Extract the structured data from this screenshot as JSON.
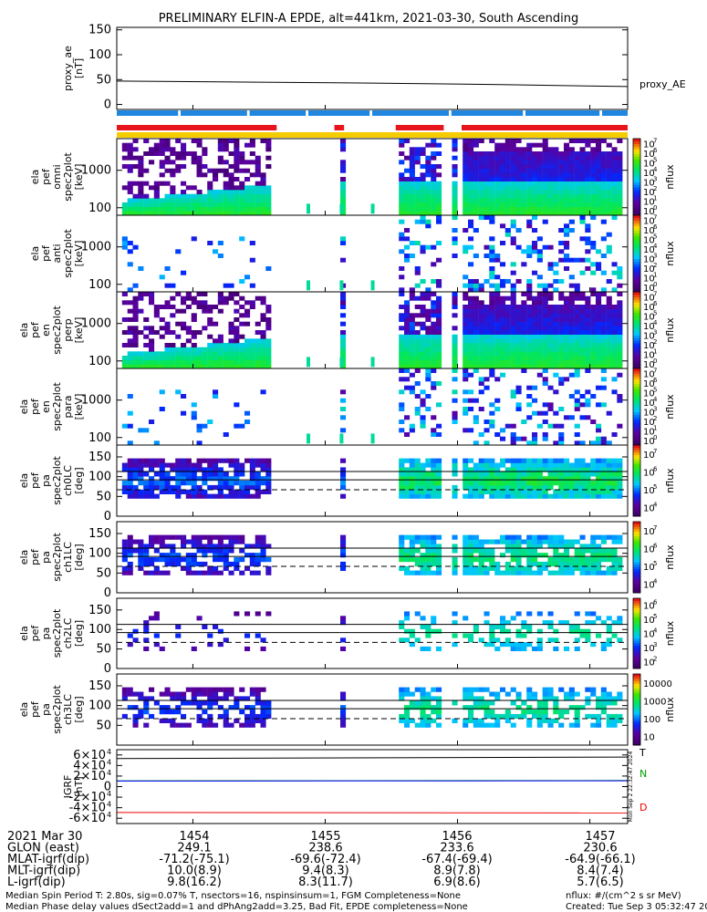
{
  "title": "PRELIMINARY ELFIN-A EPDE, alt=441km, 2021-03-30, South Ascending",
  "colors": {
    "bar_red": "#e8141c",
    "bar_yellow": "#f5cc00",
    "bar_blue": "#1f87e0",
    "igrf_T": "#000000",
    "igrf_N": "#00a000",
    "igrf_N2": "#0000ff",
    "igrf_D": "#ee0000"
  },
  "chart_data": [
    {
      "id": "proxy_ae",
      "type": "line",
      "ylabel": [
        "proxy_ae",
        "[nT]"
      ],
      "yticks": [
        "0",
        "50",
        "100",
        "150"
      ],
      "ylim": [
        -10,
        155
      ],
      "series": [
        {
          "name": "proxy_AE",
          "x": [
            0,
            0.25,
            0.5,
            0.75,
            1.0
          ],
          "y": [
            47,
            45,
            43,
            40,
            36
          ]
        }
      ],
      "legend": "proxy_AE"
    },
    {
      "id": "status_bars",
      "type": "bar",
      "rows": [
        {
          "name": "blue",
          "segments": [
            [
              0.0,
              0.12
            ],
            [
              0.125,
              0.255
            ],
            [
              0.26,
              0.37
            ],
            [
              0.375,
              0.495
            ],
            [
              0.5,
              0.65
            ],
            [
              0.655,
              0.795
            ],
            [
              0.8,
              0.945
            ],
            [
              0.95,
              1.0
            ]
          ]
        },
        {
          "name": "red",
          "segments": [
            [
              0.0,
              0.313
            ],
            [
              0.426,
              0.445
            ],
            [
              0.546,
              0.64
            ],
            [
              0.675,
              1.0
            ]
          ]
        },
        {
          "name": "yellow",
          "segments": [
            [
              0.0,
              1.0
            ]
          ]
        }
      ]
    },
    {
      "id": "spec-omni",
      "type": "heatmap",
      "ylabel": [
        "ela",
        "pef",
        "omni",
        "spec2plot",
        "[keV]"
      ],
      "yscale": "log",
      "yticks": [
        "100",
        "1000"
      ],
      "ytick_values": [
        100,
        1000
      ],
      "ylim": [
        63,
        7000
      ],
      "cb_ticks": [
        "10",
        "10",
        "10",
        "10",
        "10",
        "10",
        "10",
        "10"
      ],
      "cb_exps": [
        "0",
        "1",
        "2",
        "3",
        "4",
        "5",
        "6",
        "7"
      ],
      "cb_label": "nflux",
      "profile": "spec_dense"
    },
    {
      "id": "spec-anti",
      "type": "heatmap",
      "ylabel": [
        "ela",
        "pef",
        "anti",
        "spec2plot",
        "[keV]"
      ],
      "yscale": "log",
      "yticks": [
        "100",
        "1000"
      ],
      "ytick_values": [
        100,
        1000
      ],
      "ylim": [
        63,
        7000
      ],
      "cb_ticks": [
        "10",
        "10",
        "10",
        "10",
        "10",
        "10",
        "10",
        "10"
      ],
      "cb_exps": [
        "0",
        "1",
        "2",
        "3",
        "4",
        "5",
        "6",
        "7"
      ],
      "cb_label": "nflux",
      "profile": "spec_sparse"
    },
    {
      "id": "spec-perp",
      "type": "heatmap",
      "ylabel": [
        "ela",
        "pef",
        "en",
        "spec2plot",
        "perp",
        "[keV]"
      ],
      "yscale": "log",
      "yticks": [
        "100",
        "1000"
      ],
      "ytick_values": [
        100,
        1000
      ],
      "ylim": [
        63,
        7000
      ],
      "cb_ticks": [
        "10",
        "10",
        "10",
        "10",
        "10",
        "10",
        "10",
        "10"
      ],
      "cb_exps": [
        "0",
        "1",
        "2",
        "3",
        "4",
        "5",
        "6",
        "7"
      ],
      "cb_label": "nflux",
      "profile": "spec_dense"
    },
    {
      "id": "spec-para",
      "type": "heatmap",
      "ylabel": [
        "ela",
        "pef",
        "en",
        "spec2plot",
        "para",
        "[keV]"
      ],
      "yscale": "log",
      "yticks": [
        "100",
        "1000"
      ],
      "ytick_values": [
        100,
        1000
      ],
      "ylim": [
        63,
        7000
      ],
      "cb_ticks": [
        "10",
        "10",
        "10",
        "10",
        "10",
        "10",
        "10",
        "10"
      ],
      "cb_exps": [
        "0",
        "1",
        "2",
        "3",
        "4",
        "5",
        "6",
        "7"
      ],
      "cb_label": "nflux",
      "profile": "spec_sparse"
    },
    {
      "id": "pa-ch0",
      "type": "heatmap",
      "ylabel": [
        "ela",
        "pef",
        "pa",
        "spec2plot",
        "ch0LC",
        "[deg]"
      ],
      "yticks": [
        "0",
        "50",
        "100",
        "150"
      ],
      "ytick_values": [
        0,
        50,
        100,
        150
      ],
      "ylim": [
        0,
        180
      ],
      "reflines": [
        {
          "value": 113,
          "style": "solid"
        },
        {
          "value": 92,
          "style": "solid"
        },
        {
          "value": 67,
          "style": "dashed"
        }
      ],
      "cb_ticks": [
        "10",
        "10",
        "10",
        "10"
      ],
      "cb_exps": [
        "4",
        "5",
        "6",
        "7"
      ],
      "cb_label": "nflux",
      "profile": "pa_dense"
    },
    {
      "id": "pa-ch1",
      "type": "heatmap",
      "ylabel": [
        "ela",
        "pef",
        "pa",
        "spec2plot",
        "ch1LC",
        "[deg]"
      ],
      "yticks": [
        "0",
        "50",
        "100",
        "150"
      ],
      "ytick_values": [
        0,
        50,
        100,
        150
      ],
      "ylim": [
        0,
        180
      ],
      "reflines": [
        {
          "value": 113,
          "style": "solid"
        },
        {
          "value": 92,
          "style": "solid"
        },
        {
          "value": 67,
          "style": "dashed"
        }
      ],
      "cb_ticks": [
        "10",
        "10",
        "10",
        "10"
      ],
      "cb_exps": [
        "4",
        "5",
        "6",
        "7"
      ],
      "cb_label": "nflux",
      "profile": "pa_mid"
    },
    {
      "id": "pa-ch2",
      "type": "heatmap",
      "ylabel": [
        "ela",
        "pef",
        "pa",
        "spec2plot",
        "ch2LC",
        "[deg]"
      ],
      "yticks": [
        "0",
        "50",
        "100",
        "150"
      ],
      "ytick_values": [
        0,
        50,
        100,
        150
      ],
      "ylim": [
        0,
        180
      ],
      "reflines": [
        {
          "value": 113,
          "style": "solid"
        },
        {
          "value": 92,
          "style": "solid"
        },
        {
          "value": 67,
          "style": "dashed"
        }
      ],
      "cb_ticks": [
        "10",
        "10",
        "10",
        "10",
        "10"
      ],
      "cb_exps": [
        "2",
        "3",
        "4",
        "5",
        "6"
      ],
      "cb_label": "nflux",
      "profile": "pa_sparse"
    },
    {
      "id": "pa-ch3",
      "type": "heatmap",
      "ylabel": [
        "ela",
        "pef",
        "pa",
        "spec2plot",
        "ch3LC",
        "[deg]"
      ],
      "yticks": [
        "50",
        "100",
        "150"
      ],
      "ytick_values": [
        50,
        100,
        150
      ],
      "ylim": [
        0,
        180
      ],
      "reflines": [
        {
          "value": 113,
          "style": "solid"
        },
        {
          "value": 92,
          "style": "solid"
        },
        {
          "value": 67,
          "style": "dashed"
        }
      ],
      "cb_ticks": [
        "10",
        "100",
        "1000",
        "10000"
      ],
      "cb_exps": [
        "",
        "",
        "",
        ""
      ],
      "cb_label": "nflux",
      "profile": "pa_ch3"
    },
    {
      "id": "igrf",
      "type": "line",
      "ylabel": [
        "IGRF",
        "[nT]"
      ],
      "yticks": [
        "-6×10",
        "-4×10",
        "-2×10",
        "0",
        "2×10",
        "4×10",
        "6×10"
      ],
      "ytick_exps": [
        "4",
        "4",
        "4",
        "",
        "4",
        "4",
        "4"
      ],
      "ytick_values": [
        -60000,
        -40000,
        -20000,
        0,
        20000,
        40000,
        60000
      ],
      "ylim": [
        -70000,
        70000
      ],
      "series": [
        {
          "name": "T",
          "color": "#000000",
          "x": [
            0,
            1
          ],
          "y": [
            53000,
            56000
          ]
        },
        {
          "name": "N",
          "color": "#00a000",
          "x": [
            0,
            1
          ],
          "y": [
            11000,
            11500
          ]
        },
        {
          "name": "",
          "color": "#0000ff",
          "x": [
            0,
            1
          ],
          "y": [
            10500,
            11000
          ]
        },
        {
          "name": "D",
          "color": "#ee0000",
          "x": [
            0,
            1
          ],
          "y": [
            -49000,
            -50000
          ]
        }
      ],
      "legend": [
        "T",
        "N",
        "D"
      ],
      "side_stamp": "Mon Sep  2 22:32:47 2024"
    }
  ],
  "time_axis": {
    "rows": [
      {
        "label": "2021 Mar 30",
        "values": [
          "1454",
          "1455",
          "1456",
          "1457"
        ]
      },
      {
        "label": "GLON (east)",
        "values": [
          "249.1",
          "238.6",
          "233.6",
          "230.6"
        ]
      },
      {
        "label": "MLAT-igrf(dip)",
        "values": [
          "-71.2(-75.1)",
          "-69.6(-72.4)",
          "-67.4(-69.4)",
          "-64.9(-66.1)"
        ]
      },
      {
        "label": "MLT-igrf(dip)",
        "values": [
          "10.0(8.9)",
          "9.4(8.3)",
          "8.9(7.8)",
          "8.4(7.4)"
        ]
      },
      {
        "label": "L-igrf(dip)",
        "values": [
          "9.8(16.2)",
          "8.3(11.7)",
          "6.9(8.6)",
          "5.7(6.5)"
        ]
      }
    ]
  },
  "footer": {
    "line1_left": "Median Spin Period T: 2.80s, sig=0.07% T, nsectors=16, nspinsinsum=1, FGM Completeness=None",
    "line2_left": "Median Phase delay values dSect2add=1 and dPhAng2add=3.25, Bad Fit, EPDE completeness=None",
    "line1_right": "nflux: #/(cm^2 s sr MeV)",
    "line2_right": "Created: Tue Sep  3 05:32:47 2024"
  }
}
